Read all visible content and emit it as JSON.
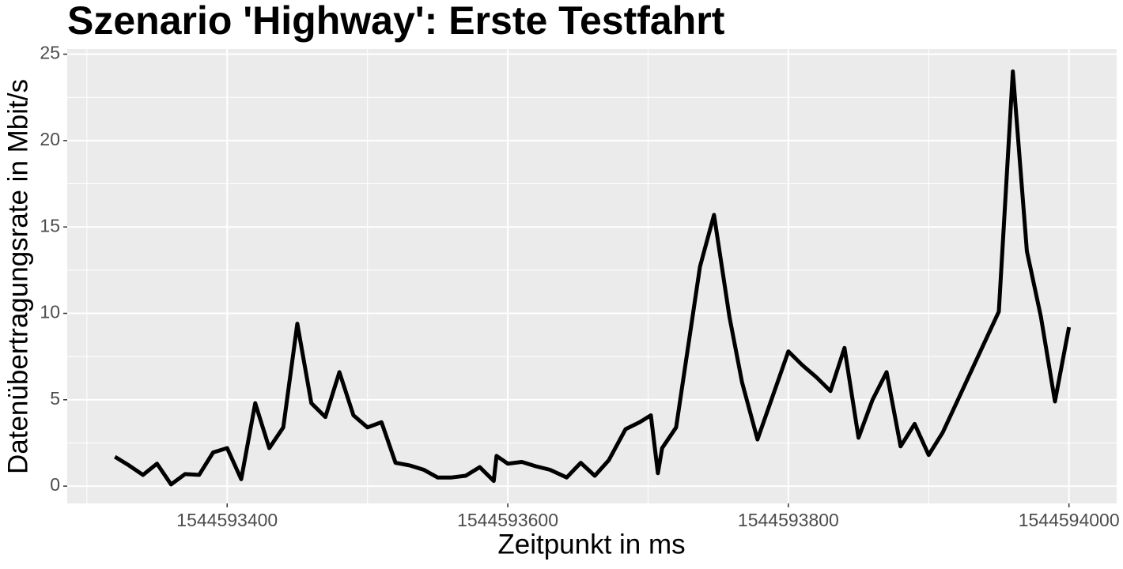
{
  "chart_data": {
    "type": "line",
    "title": "Szenario 'Highway': Erste Testfahrt",
    "x_label": "Zeitpunkt in ms",
    "y_label": "Datenübertragungsrate in Mbit/s",
    "x": [
      1544593320,
      1544593330,
      1544593340,
      1544593350,
      1544593360,
      1544593370,
      1544593380,
      1544593390,
      1544593400,
      1544593410,
      1544593420,
      1544593430,
      1544593440,
      1544593450,
      1544593460,
      1544593470,
      1544593480,
      1544593490,
      1544593500,
      1544593510,
      1544593520,
      1544593530,
      1544593540,
      1544593550,
      1544593560,
      1544593570,
      1544593580,
      1544593590,
      1544593592,
      1544593600,
      1544593610,
      1544593620,
      1544593630,
      1544593642,
      1544593652,
      1544593662,
      1544593672,
      1544593684,
      1544593694,
      1544593702,
      1544593707,
      1544593710,
      1544593720,
      1544593737,
      1544593747,
      1544593758,
      1544593767,
      1544593778,
      1544593800,
      1544593810,
      1544593820,
      1544593830,
      1544593840,
      1544593850,
      1544593860,
      1544593870,
      1544593880,
      1544593890,
      1544593900,
      1544593910,
      1544593950,
      1544593960,
      1544593970,
      1544593980,
      1544593990,
      1544594000
    ],
    "series": [
      {
        "name": "Datenübertragungsrate",
        "color": "#000000",
        "values": [
          1.7,
          1.2,
          0.65,
          1.3,
          0.1,
          0.7,
          0.65,
          1.95,
          2.2,
          0.4,
          4.8,
          2.2,
          3.4,
          9.4,
          4.8,
          4.0,
          6.6,
          4.1,
          3.4,
          3.7,
          1.35,
          1.2,
          0.95,
          0.5,
          0.5,
          0.6,
          1.1,
          0.3,
          1.75,
          1.3,
          1.4,
          1.15,
          0.95,
          0.5,
          1.35,
          0.6,
          1.5,
          3.3,
          3.7,
          4.1,
          0.75,
          2.2,
          3.4,
          12.7,
          15.7,
          9.8,
          6.0,
          2.7,
          7.8,
          7.0,
          6.3,
          5.5,
          8.0,
          2.8,
          5.0,
          6.6,
          2.3,
          3.6,
          1.8,
          3.1,
          10.1,
          24.0,
          13.6,
          9.8,
          4.9,
          9.2
        ]
      }
    ],
    "xlim": [
      1544593286,
      1544594034
    ],
    "ylim": [
      -1.0,
      25.3
    ],
    "xticks": [
      1544593400,
      1544593600,
      1544593800,
      1544594000
    ],
    "yticks": [
      0,
      5,
      10,
      15,
      20,
      25
    ],
    "grid": true
  }
}
